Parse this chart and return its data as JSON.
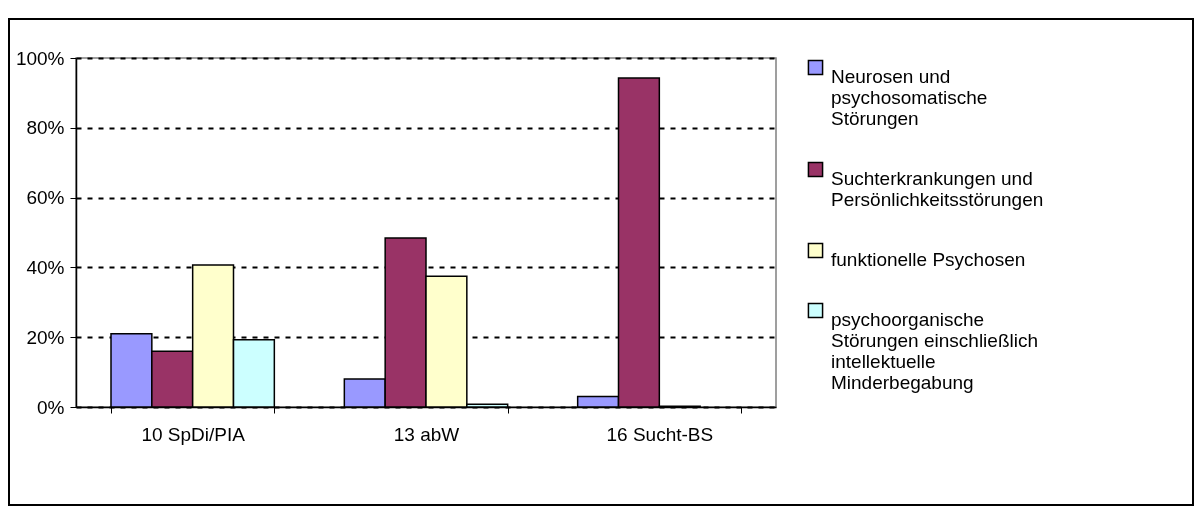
{
  "chart_data": {
    "type": "bar",
    "categories": [
      "10 SpDi/PIA",
      "13 abW",
      "16 Sucht-BS"
    ],
    "series": [
      {
        "name": "Neurosen und psychosomatische Störungen",
        "color": "#9999ff",
        "values": [
          21,
          8,
          3
        ]
      },
      {
        "name": "Suchterkrankungen und Persönlichkeitsstörungen",
        "color": "#993366",
        "values": [
          16,
          48.4,
          94.3
        ]
      },
      {
        "name": "funktionelle Psychosen",
        "color": "#ffffcc",
        "values": [
          40.7,
          37.5,
          0.2
        ]
      },
      {
        "name": "psychoorganische Störungen einschließlich intellektuelle Minderbegabung",
        "color": "#ccffff",
        "values": [
          19.3,
          0.8,
          null
        ]
      }
    ],
    "ylim": [
      0,
      100
    ],
    "yticks": [
      {
        "value": 0,
        "label": "0%"
      },
      {
        "value": 20,
        "label": "20%"
      },
      {
        "value": 40,
        "label": "40%"
      },
      {
        "value": 60,
        "label": "60%"
      },
      {
        "value": 80,
        "label": "80%"
      },
      {
        "value": 100,
        "label": "100%"
      }
    ],
    "grid": "y",
    "legend": "right"
  }
}
